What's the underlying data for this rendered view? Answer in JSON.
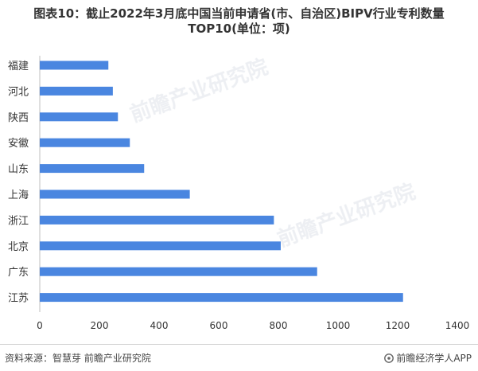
{
  "header": {
    "title_line1": "图表10：截止2022年3月底中国当前申请省(市、自治区)BIPV行业专利数量",
    "title_line2": "TOP10(单位：项)"
  },
  "footer": {
    "source": "资料来源：智慧芽 前瞻产业研究院",
    "brand": "前瞻经济学人APP"
  },
  "watermark": {
    "text": "前瞻产业研究院"
  },
  "colors": {
    "bar": "#4a86e0",
    "axis": "#bfbfbf",
    "text": "#333333"
  },
  "chart_data": {
    "type": "bar",
    "orientation": "horizontal",
    "categories": [
      "福建",
      "河北",
      "陕西",
      "安徽",
      "山东",
      "上海",
      "浙江",
      "北京",
      "广东",
      "江苏"
    ],
    "values": [
      230,
      245,
      262,
      302,
      350,
      503,
      785,
      808,
      930,
      1218
    ],
    "xlim": [
      0,
      1400
    ],
    "xticks": [
      0,
      200,
      400,
      600,
      800,
      1000,
      1200,
      1400
    ],
    "grid": false,
    "legend": "none"
  }
}
